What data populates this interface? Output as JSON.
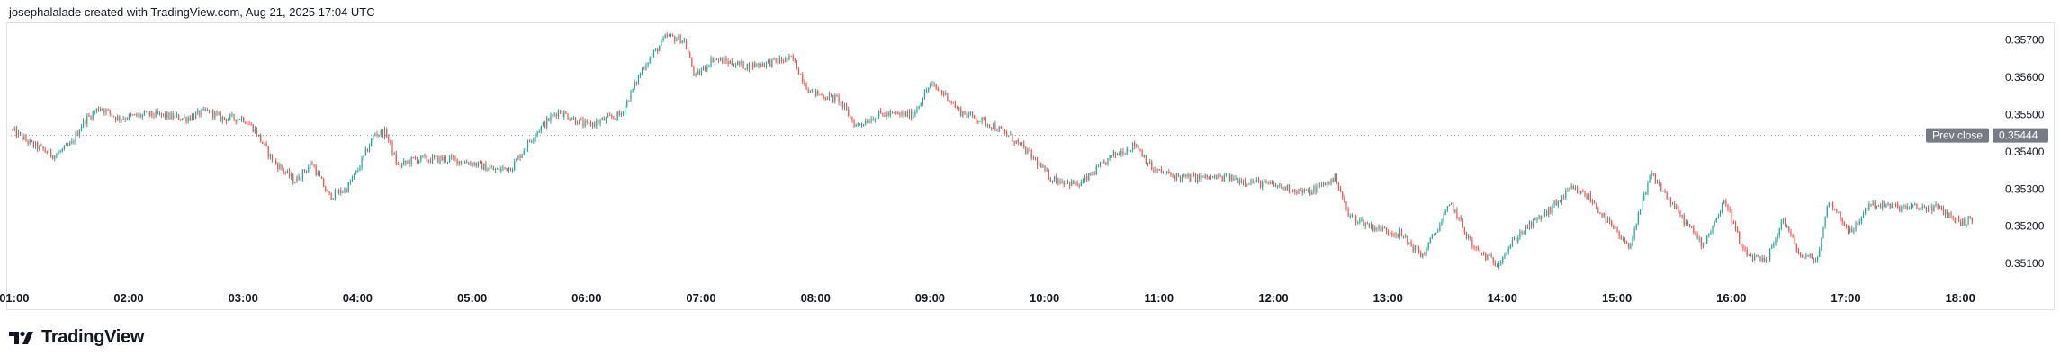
{
  "header": {
    "attribution": "josephalalade created with TradingView.com, Aug 21, 2025 17:04 UTC"
  },
  "footer": {
    "brand": "TradingView",
    "logo_icon": "tradingview-logo-icon"
  },
  "colors": {
    "up": "#26a69a",
    "down": "#ef5350",
    "prev_close_line": "#9598a1",
    "prev_close_tag": "#787b86",
    "price_tag": "#787b86"
  },
  "chart_data": {
    "type": "candlestick",
    "title": "",
    "interval": "1 minute",
    "ylim": [
      0.3504,
      0.3574
    ],
    "y_ticks": [
      "0.35700",
      "0.35600",
      "0.35500",
      "0.35400",
      "0.35300",
      "0.35200",
      "0.35100"
    ],
    "x_ticks": [
      "01:00",
      "02:00",
      "03:00",
      "04:00",
      "05:00",
      "06:00",
      "07:00",
      "08:00",
      "09:00",
      "10:00",
      "11:00",
      "12:00",
      "13:00",
      "14:00",
      "15:00",
      "16:00",
      "17:00",
      "18:00"
    ],
    "x_range_hours": [
      0.97,
      18.25
    ],
    "prev_close": {
      "label": "Prev close",
      "value": "0.35444"
    },
    "grid": false,
    "price_path": [
      [
        0.97,
        0.3546
      ],
      [
        1.15,
        0.3542
      ],
      [
        1.35,
        0.3539
      ],
      [
        1.5,
        0.3542
      ],
      [
        1.6,
        0.3548
      ],
      [
        1.75,
        0.3552
      ],
      [
        1.9,
        0.3549
      ],
      [
        2.2,
        0.355
      ],
      [
        2.5,
        0.3549
      ],
      [
        2.7,
        0.3551
      ],
      [
        2.8,
        0.3549
      ],
      [
        3.0,
        0.3549
      ],
      [
        3.1,
        0.3546
      ],
      [
        3.25,
        0.3538
      ],
      [
        3.45,
        0.3532
      ],
      [
        3.6,
        0.3537
      ],
      [
        3.75,
        0.3528
      ],
      [
        3.9,
        0.353
      ],
      [
        4.0,
        0.3535
      ],
      [
        4.15,
        0.3545
      ],
      [
        4.25,
        0.3545
      ],
      [
        4.35,
        0.3536
      ],
      [
        4.5,
        0.3538
      ],
      [
        4.8,
        0.3538
      ],
      [
        5.0,
        0.3537
      ],
      [
        5.2,
        0.3535
      ],
      [
        5.35,
        0.3536
      ],
      [
        5.55,
        0.3545
      ],
      [
        5.75,
        0.3551
      ],
      [
        6.0,
        0.3547
      ],
      [
        6.3,
        0.355
      ],
      [
        6.5,
        0.3563
      ],
      [
        6.7,
        0.3571
      ],
      [
        6.85,
        0.357
      ],
      [
        6.95,
        0.356
      ],
      [
        7.1,
        0.3565
      ],
      [
        7.4,
        0.3563
      ],
      [
        7.8,
        0.3565
      ],
      [
        7.95,
        0.3556
      ],
      [
        8.2,
        0.3554
      ],
      [
        8.35,
        0.3547
      ],
      [
        8.55,
        0.355
      ],
      [
        8.85,
        0.355
      ],
      [
        9.0,
        0.3558
      ],
      [
        9.15,
        0.3555
      ],
      [
        9.25,
        0.3551
      ],
      [
        9.55,
        0.3547
      ],
      [
        9.7,
        0.3544
      ],
      [
        9.85,
        0.354
      ],
      [
        10.05,
        0.3533
      ],
      [
        10.3,
        0.3531
      ],
      [
        10.6,
        0.3539
      ],
      [
        10.8,
        0.3542
      ],
      [
        10.95,
        0.3535
      ],
      [
        11.2,
        0.3533
      ],
      [
        11.6,
        0.3533
      ],
      [
        12.0,
        0.3531
      ],
      [
        12.3,
        0.3529
      ],
      [
        12.55,
        0.3533
      ],
      [
        12.65,
        0.3523
      ],
      [
        12.85,
        0.352
      ],
      [
        13.1,
        0.3518
      ],
      [
        13.3,
        0.3512
      ],
      [
        13.55,
        0.3526
      ],
      [
        13.75,
        0.3514
      ],
      [
        13.95,
        0.351
      ],
      [
        14.15,
        0.3518
      ],
      [
        14.4,
        0.3524
      ],
      [
        14.6,
        0.353
      ],
      [
        14.75,
        0.3528
      ],
      [
        14.9,
        0.3522
      ],
      [
        15.1,
        0.3514
      ],
      [
        15.3,
        0.3534
      ],
      [
        15.55,
        0.3523
      ],
      [
        15.75,
        0.3515
      ],
      [
        15.95,
        0.3527
      ],
      [
        16.1,
        0.3513
      ],
      [
        16.3,
        0.351
      ],
      [
        16.45,
        0.3522
      ],
      [
        16.6,
        0.3512
      ],
      [
        16.75,
        0.3511
      ],
      [
        16.85,
        0.3527
      ],
      [
        17.05,
        0.3518
      ],
      [
        17.2,
        0.3526
      ],
      [
        17.5,
        0.3525
      ],
      [
        17.8,
        0.3525
      ],
      [
        18.0,
        0.3521
      ],
      [
        18.12,
        0.3522
      ]
    ]
  }
}
